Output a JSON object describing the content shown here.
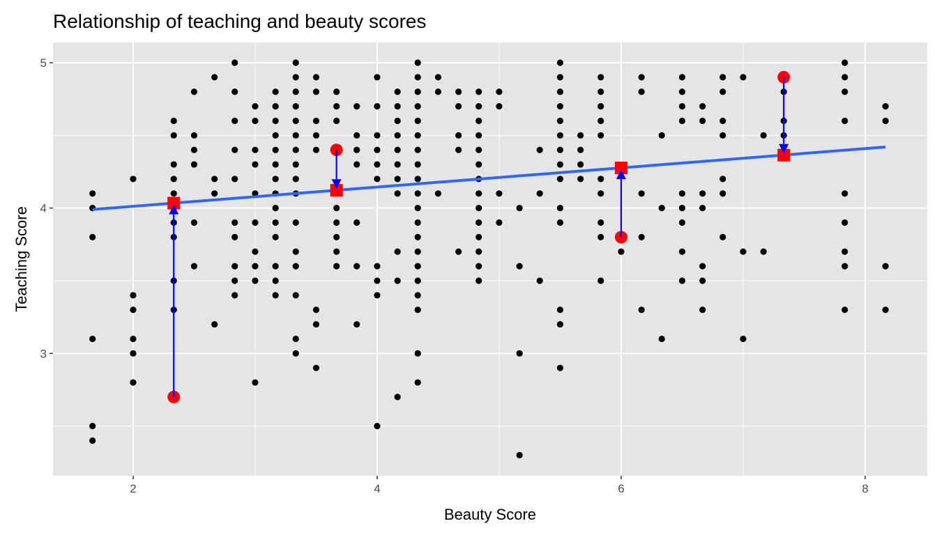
{
  "chart_data": {
    "type": "scatter",
    "title": "Relationship of teaching and beauty scores",
    "xlabel": "Beauty Score",
    "ylabel": "Teaching Score",
    "xlim": [
      1.343,
      8.509
    ],
    "ylim": [
      2.158,
      5.139
    ],
    "xticks": [
      2,
      4,
      6,
      8
    ],
    "yticks": [
      3,
      4,
      5
    ],
    "x_tick_labels": [
      "2",
      "4",
      "6",
      "8"
    ],
    "y_tick_labels": [
      "3",
      "4",
      "5"
    ],
    "grid": true,
    "colors": {
      "panel": "#e5e5e5",
      "grid": "#ffffff",
      "points": "#000000",
      "regression_line": "#3366ff",
      "highlight": "#ff0000",
      "residual_arrow": "#0000ff"
    },
    "points_by_column": [
      {
        "x": 1.667,
        "y": [
          4.1,
          4.0,
          3.8,
          3.1,
          2.5,
          2.4
        ]
      },
      {
        "x": 2.0,
        "y": [
          4.2,
          3.4,
          3.3,
          3.1,
          3.0,
          2.8
        ]
      },
      {
        "x": 2.333,
        "y": [
          4.6,
          4.5,
          4.3,
          4.2,
          4.1,
          4.0,
          3.9,
          3.8,
          3.5,
          3.3
        ]
      },
      {
        "x": 2.5,
        "y": [
          4.8,
          4.5,
          4.4,
          4.3,
          3.9,
          3.6
        ]
      },
      {
        "x": 2.667,
        "y": [
          4.9,
          4.2,
          4.1,
          3.2
        ]
      },
      {
        "x": 2.833,
        "y": [
          5.0,
          4.8,
          4.6,
          4.4,
          4.2,
          3.9,
          3.8,
          3.6,
          3.5,
          3.4
        ]
      },
      {
        "x": 3.0,
        "y": [
          4.7,
          4.6,
          4.4,
          4.3,
          4.1,
          3.9,
          3.7,
          3.6,
          3.5,
          2.8
        ]
      },
      {
        "x": 3.167,
        "y": [
          4.8,
          4.7,
          4.6,
          4.5,
          4.4,
          4.3,
          4.2,
          4.1,
          4.0,
          3.9,
          3.8,
          3.6,
          3.5,
          3.4
        ]
      },
      {
        "x": 3.333,
        "y": [
          5.0,
          4.9,
          4.8,
          4.7,
          4.6,
          4.5,
          4.4,
          4.3,
          4.2,
          4.1,
          3.9,
          3.7,
          3.6,
          3.4,
          3.1,
          3.0
        ]
      },
      {
        "x": 3.5,
        "y": [
          4.9,
          4.8,
          4.6,
          4.5,
          4.4,
          3.3,
          3.2,
          2.9
        ]
      },
      {
        "x": 3.667,
        "y": [
          4.8,
          4.7,
          4.6,
          4.1,
          4.0,
          3.9,
          3.8,
          3.7,
          3.6
        ]
      },
      {
        "x": 3.833,
        "y": [
          4.7,
          4.5,
          4.4,
          4.3,
          3.9,
          3.6,
          3.2
        ]
      },
      {
        "x": 4.0,
        "y": [
          4.9,
          4.7,
          4.5,
          4.4,
          4.3,
          4.2,
          3.6,
          3.5,
          3.4,
          2.5
        ]
      },
      {
        "x": 4.167,
        "y": [
          4.8,
          4.7,
          4.6,
          4.5,
          4.4,
          4.3,
          4.2,
          4.1,
          3.7,
          3.5,
          2.7
        ]
      },
      {
        "x": 4.333,
        "y": [
          5.0,
          4.9,
          4.8,
          4.7,
          4.6,
          4.5,
          4.4,
          4.3,
          4.2,
          4.1,
          4.0,
          3.9,
          3.8,
          3.7,
          3.6,
          3.5,
          3.4,
          3.3,
          3.0,
          2.8
        ]
      },
      {
        "x": 4.5,
        "y": [
          4.9,
          4.8,
          4.1
        ]
      },
      {
        "x": 4.667,
        "y": [
          4.8,
          4.7,
          4.5,
          4.4,
          3.7
        ]
      },
      {
        "x": 4.833,
        "y": [
          4.8,
          4.7,
          4.6,
          4.5,
          4.4,
          4.3,
          4.2,
          4.1,
          4.0,
          3.9,
          3.8,
          3.7,
          3.6,
          3.5
        ]
      },
      {
        "x": 5.0,
        "y": [
          4.8,
          4.7,
          4.1,
          3.9
        ]
      },
      {
        "x": 5.167,
        "y": [
          4.0,
          3.6,
          3.0,
          2.3
        ]
      },
      {
        "x": 5.333,
        "y": [
          4.4,
          4.1,
          3.5
        ]
      },
      {
        "x": 5.5,
        "y": [
          5.0,
          4.9,
          4.8,
          4.7,
          4.6,
          4.5,
          4.4,
          4.3,
          4.2,
          4.0,
          3.9,
          3.3,
          3.2,
          2.9
        ]
      },
      {
        "x": 5.667,
        "y": [
          4.5,
          4.4,
          4.3,
          4.2
        ]
      },
      {
        "x": 5.833,
        "y": [
          4.9,
          4.8,
          4.7,
          4.6,
          4.5,
          4.2,
          4.1,
          3.9,
          3.8,
          3.5
        ]
      },
      {
        "x": 6.0,
        "y": [
          3.7
        ]
      },
      {
        "x": 6.167,
        "y": [
          4.9,
          4.8,
          4.1,
          3.8,
          3.3
        ]
      },
      {
        "x": 6.333,
        "y": [
          4.5,
          4.0,
          3.1
        ]
      },
      {
        "x": 6.5,
        "y": [
          4.9,
          4.8,
          4.7,
          4.6,
          4.1,
          4.0,
          3.9,
          3.7,
          3.5
        ]
      },
      {
        "x": 6.667,
        "y": [
          4.7,
          4.6,
          4.1,
          4.0,
          3.6,
          3.5,
          3.3
        ]
      },
      {
        "x": 6.833,
        "y": [
          4.9,
          4.8,
          4.6,
          4.5,
          4.2,
          4.1,
          3.8
        ]
      },
      {
        "x": 7.0,
        "y": [
          4.9,
          3.7,
          3.1
        ]
      },
      {
        "x": 7.167,
        "y": [
          4.5,
          3.7
        ]
      },
      {
        "x": 7.333,
        "y": [
          4.8,
          4.6,
          4.5
        ]
      },
      {
        "x": 7.833,
        "y": [
          5.0,
          4.9,
          4.8,
          4.6,
          4.1,
          3.9,
          3.7,
          3.6,
          3.3
        ]
      },
      {
        "x": 8.167,
        "y": [
          4.7,
          4.6,
          3.6,
          3.3
        ]
      }
    ],
    "regression_line": {
      "x": [
        1.667,
        8.167
      ],
      "y": [
        3.99,
        4.42
      ]
    },
    "highlighted_observed": [
      {
        "x": 2.333,
        "y": 2.7
      },
      {
        "x": 3.667,
        "y": 4.4
      },
      {
        "x": 6.0,
        "y": 3.8
      },
      {
        "x": 7.333,
        "y": 4.9
      }
    ],
    "highlighted_fitted": [
      {
        "x": 2.333,
        "y": 4.034
      },
      {
        "x": 3.667,
        "y": 4.122
      },
      {
        "x": 6.0,
        "y": 4.276
      },
      {
        "x": 7.333,
        "y": 4.364
      }
    ]
  }
}
